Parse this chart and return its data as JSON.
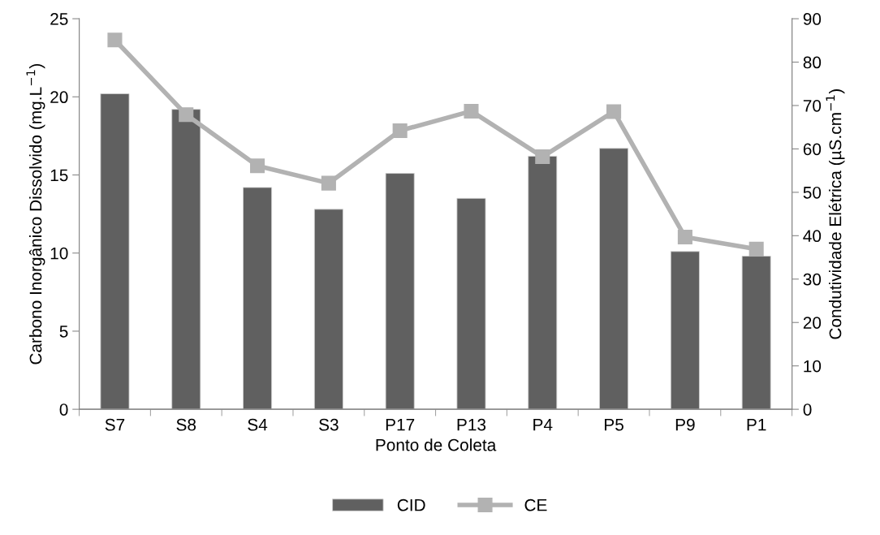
{
  "chart_data": {
    "type": "bar",
    "xlabel": "Ponto de Coleta",
    "ylabel": "Carbono Inorgânico Dissolvido (mg.L$^{−1}$)",
    "y2label": "Condutividade Elétrica (µS.cm$^{−1}$)",
    "categories": [
      "S7",
      "S8",
      "S4",
      "S3",
      "P17",
      "P13",
      "P4",
      "P5",
      "P9",
      "P1"
    ],
    "series": [
      {
        "name": "CID",
        "color": "#606060",
        "values": [
          20.2,
          19.2,
          14.2,
          12.8,
          15.1,
          13.5,
          16.2,
          16.7,
          10.1,
          9.8
        ]
      },
      {
        "name": "CE",
        "type": "line",
        "axis": "y2",
        "color": "#b2b2b2",
        "marker": "square",
        "values": [
          85.1,
          67.9,
          56.1,
          52.1,
          64.2,
          68.7,
          58.2,
          68.6,
          39.7,
          36.9
        ]
      }
    ],
    "ylim": [
      0,
      25
    ],
    "yticks": [
      0,
      5,
      10,
      15,
      20,
      25
    ],
    "y2lim": [
      0,
      90
    ],
    "y2ticks": [
      0,
      10,
      20,
      30,
      40,
      50,
      60,
      70,
      80,
      90
    ],
    "grid": false,
    "legend": "bottom"
  }
}
